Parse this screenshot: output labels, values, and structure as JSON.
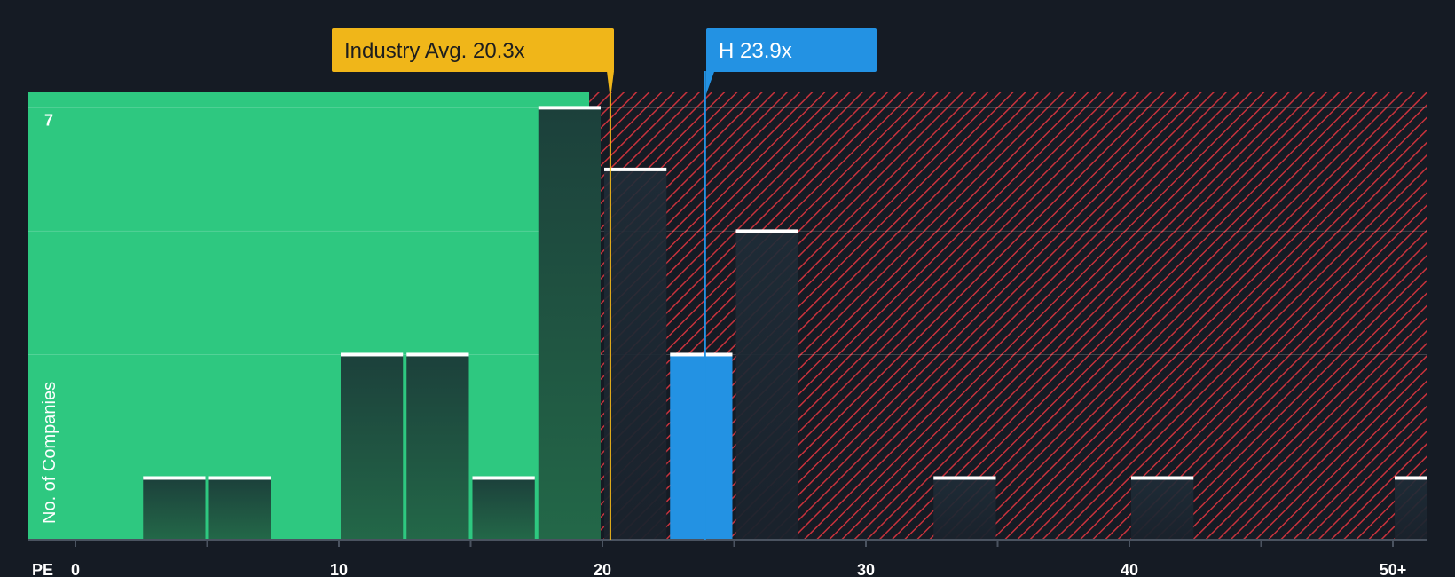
{
  "chart_data": {
    "type": "bar",
    "xlabel": "PE",
    "ylabel": "No. of Companies",
    "x_ticks": [
      "0",
      "10",
      "20",
      "30",
      "40",
      "50+"
    ],
    "y_tick_labels": [
      "7"
    ],
    "xlim": [
      0,
      51.5
    ],
    "ylim": [
      0,
      7.25
    ],
    "fair_range_end": 19.5,
    "bins": [
      {
        "x_start": 2.5,
        "x_end": 5.0,
        "count": 1
      },
      {
        "x_start": 5.0,
        "x_end": 7.5,
        "count": 1
      },
      {
        "x_start": 10.0,
        "x_end": 12.5,
        "count": 3
      },
      {
        "x_start": 12.5,
        "x_end": 15.0,
        "count": 3
      },
      {
        "x_start": 15.0,
        "x_end": 17.5,
        "count": 1
      },
      {
        "x_start": 17.5,
        "x_end": 20.0,
        "count": 7
      },
      {
        "x_start": 20.0,
        "x_end": 22.5,
        "count": 6
      },
      {
        "x_start": 22.5,
        "x_end": 25.0,
        "count": 3,
        "highlight": true
      },
      {
        "x_start": 25.0,
        "x_end": 27.5,
        "count": 5
      },
      {
        "x_start": 32.5,
        "x_end": 35.0,
        "count": 1
      },
      {
        "x_start": 40.0,
        "x_end": 42.5,
        "count": 1
      },
      {
        "x_start": 50.0,
        "x_end": 52.5,
        "count": 1
      }
    ],
    "annotations": [
      {
        "label": "Industry Avg. 20.3x",
        "value": 20.3,
        "color": "#f0b619",
        "text_color": "#1e1e1e"
      },
      {
        "label": "H 23.9x",
        "value": 23.9,
        "color": "#2392e3",
        "text_color": "#ffffff"
      }
    ],
    "colors": {
      "background": "#151b24",
      "good_zone": "#2ec880",
      "bad_hatch": "#c8323c",
      "bar": "#1e4a43",
      "highlight_bar": "#2392e3",
      "bar_cap": "#ffffff"
    }
  }
}
